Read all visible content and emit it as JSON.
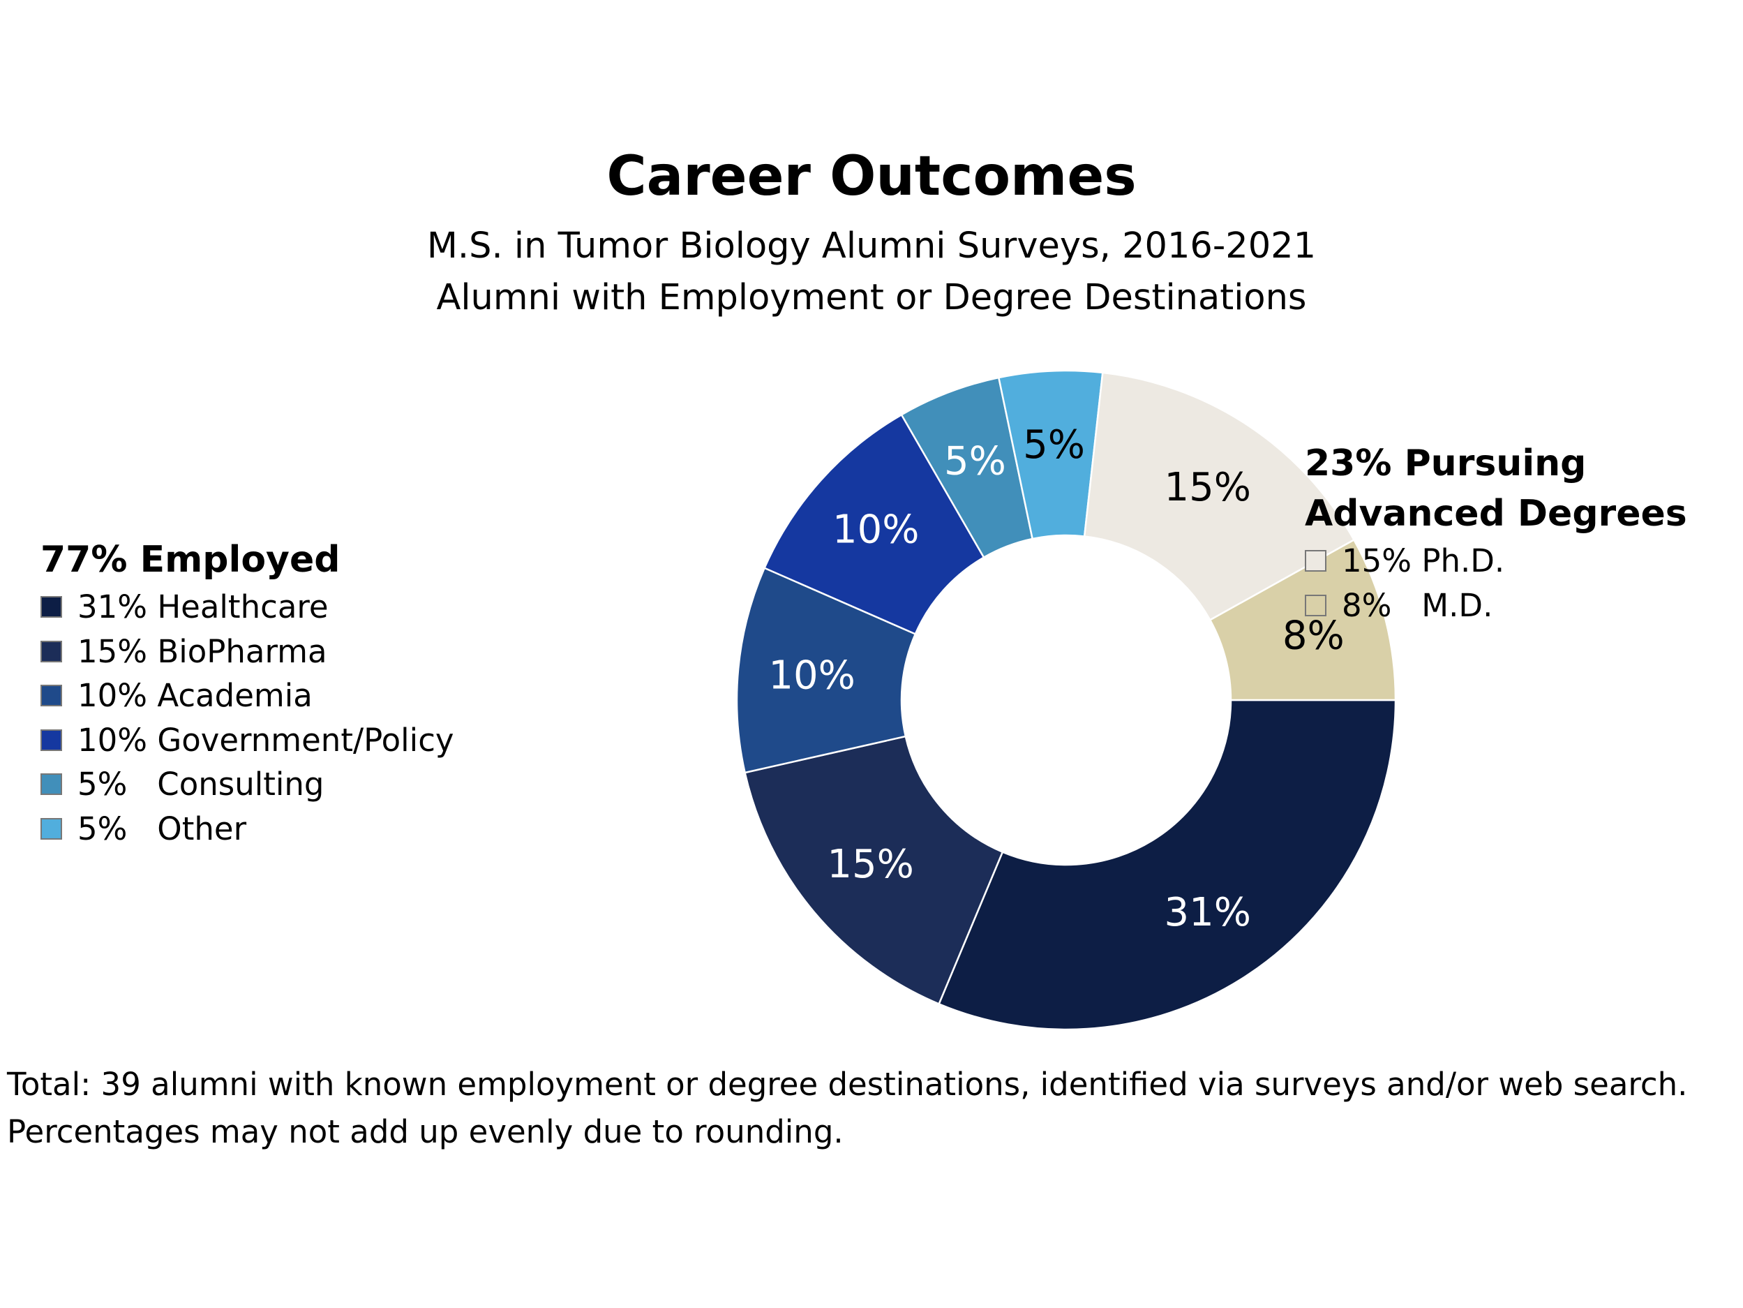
{
  "chart_data": {
    "type": "pie",
    "style": "donut",
    "title": "Career Outcomes",
    "subtitle_lines": [
      "M.S. in Tumor Biology Alumni Surveys, 2016-2021",
      "Alumni with Employment or Degree Destinations"
    ],
    "slices": [
      {
        "label": "Healthcare",
        "value": 31,
        "text": "31%",
        "color": "#0d1e45",
        "label_color": "#ffffff"
      },
      {
        "label": "BioPharma",
        "value": 15,
        "text": "15%",
        "color": "#1c2d58",
        "label_color": "#ffffff"
      },
      {
        "label": "Academia",
        "value": 10,
        "text": "10%",
        "color": "#1f4a8a",
        "label_color": "#ffffff"
      },
      {
        "label": "Government/Policy",
        "value": 10,
        "text": "10%",
        "color": "#1538a0",
        "label_color": "#ffffff"
      },
      {
        "label": "Consulting",
        "value": 5,
        "text": "5%",
        "color": "#418fba",
        "label_color": "#ffffff"
      },
      {
        "label": "Other",
        "value": 5,
        "text": "5%",
        "color": "#51aedd",
        "label_color": "#000000"
      },
      {
        "label": "Ph.D.",
        "value": 15,
        "text": "15%",
        "color": "#ede9e2",
        "label_color": "#000000"
      },
      {
        "label": "M.D.",
        "value": 8,
        "text": "8%",
        "color": "#d9d0a8",
        "label_color": "#000000"
      }
    ],
    "legend": {
      "employed": {
        "title": "77% Employed",
        "items": [
          {
            "text": "31% Healthcare",
            "color": "#0d1e45"
          },
          {
            "text": "15% BioPharma",
            "color": "#1c2d58"
          },
          {
            "text": "10% Academia",
            "color": "#1f4a8a"
          },
          {
            "text": "10% Government/Policy",
            "color": "#1538a0"
          },
          {
            "text": "5%   Consulting",
            "color": "#418fba"
          },
          {
            "text": "5%   Other",
            "color": "#51aedd"
          }
        ]
      },
      "degrees": {
        "title_lines": [
          "23% Pursuing",
          "Advanced Degrees"
        ],
        "items": [
          {
            "text": "15% Ph.D.",
            "color": "#ede9e2"
          },
          {
            "text": "8%   M.D.",
            "color": "#d9d0a8"
          }
        ]
      }
    },
    "footnote_lines": [
      "Total: 39 alumni with known employment or degree destinations, identified via surveys and/or web search.",
      "Percentages may not add up evenly due to rounding."
    ]
  }
}
